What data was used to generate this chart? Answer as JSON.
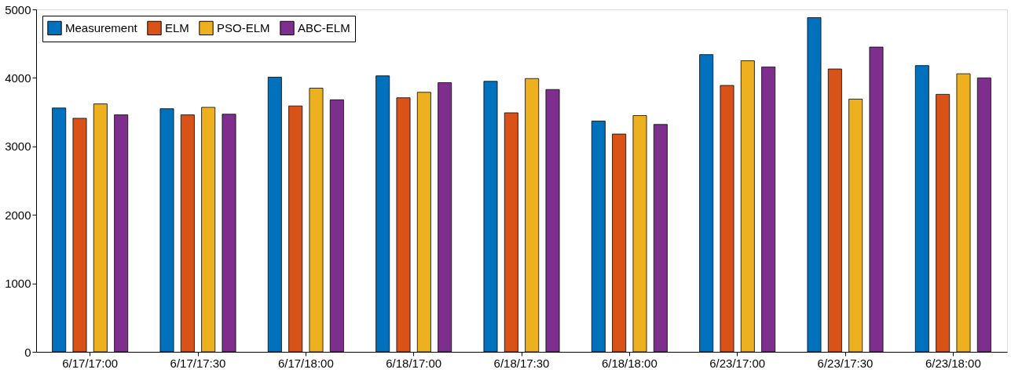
{
  "chart_data": {
    "type": "bar",
    "categories": [
      "6/17/17:00",
      "6/17/17:30",
      "6/17/18:00",
      "6/18/17:00",
      "6/18/17:30",
      "6/18/18:00",
      "6/23/17:00",
      "6/23/17:30",
      "6/23/18:00"
    ],
    "series": [
      {
        "name": "Measurement",
        "color": "#0072bd",
        "values": [
          3560,
          3550,
          4010,
          4030,
          3950,
          3370,
          4340,
          4880,
          4180
        ]
      },
      {
        "name": "ELM",
        "color": "#d95319",
        "values": [
          3410,
          3460,
          3590,
          3710,
          3490,
          3180,
          3890,
          4130,
          3760
        ]
      },
      {
        "name": "PSO-ELM",
        "color": "#edb120",
        "values": [
          3620,
          3570,
          3850,
          3790,
          3990,
          3450,
          4250,
          3690,
          4060
        ]
      },
      {
        "name": "ABC-ELM",
        "color": "#7e2f8e",
        "values": [
          3460,
          3470,
          3680,
          3930,
          3830,
          3320,
          4160,
          4450,
          4000
        ]
      }
    ],
    "ylim": [
      0,
      5000
    ],
    "yticks": [
      0,
      1000,
      2000,
      3000,
      4000,
      5000
    ],
    "grid": false,
    "legend": "top left"
  }
}
